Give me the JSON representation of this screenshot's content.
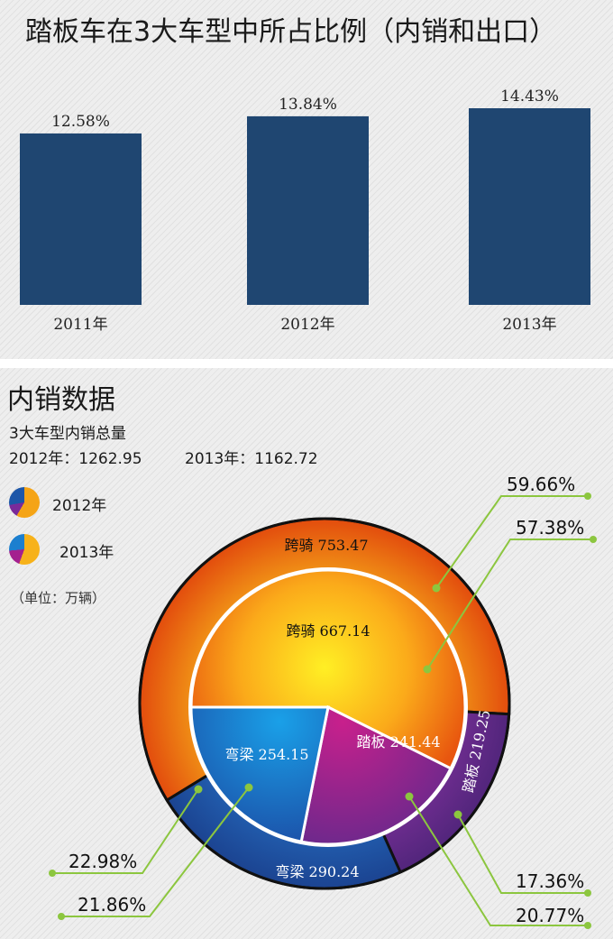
{
  "bar_chart": {
    "title": "踏板车在3大车型中所占比例（内销和出口）",
    "type": "bar",
    "categories": [
      "2011年",
      "2012年",
      "2013年"
    ],
    "values": [
      12.58,
      13.84,
      14.43
    ],
    "value_labels": [
      "12.58%",
      "13.84%",
      "14.43%"
    ],
    "color": "#1f4671"
  },
  "domestic": {
    "title": "内销数据",
    "subtitle": "3大车型内销总量",
    "total_2012": "2012年：1262.95",
    "total_2013": "2013年：1162.72",
    "legend": [
      {
        "label": "2012年"
      },
      {
        "label": "2013年"
      }
    ],
    "unit": "（单位：万辆）"
  },
  "chart_data": [
    {
      "type": "bar",
      "title": "踏板车在3大车型中所占比例（内销和出口）",
      "categories": [
        "2011年",
        "2012年",
        "2013年"
      ],
      "values": [
        12.58,
        13.84,
        14.43
      ],
      "ylabel": "",
      "ylim": [
        0,
        14.43
      ]
    },
    {
      "type": "pie",
      "title": "内销数据",
      "series": [
        {
          "name": "2012年",
          "ring": "outer",
          "total": 1262.95,
          "slices": [
            {
              "label": "跨骑",
              "value": 753.47,
              "value_text": "753.47",
              "pct": "59.66%",
              "color": "#f08a1a"
            },
            {
              "label": "踏板",
              "value": 219.25,
              "value_text": "219.25",
              "pct": "17.36%",
              "color": "#5d2a86"
            },
            {
              "label": "弯梁",
              "value": 290.24,
              "value_text": "290.24",
              "pct": "22.98%",
              "color": "#1d56a8"
            }
          ]
        },
        {
          "name": "2013年",
          "ring": "inner",
          "total": 1162.72,
          "slices": [
            {
              "label": "跨骑",
              "value": 667.14,
              "value_text": "667.14",
              "pct": "57.38%",
              "color": "#f6a014"
            },
            {
              "label": "踏板",
              "value": 241.44,
              "value_text": "241.44",
              "pct": "20.77%",
              "color": "#a4208f"
            },
            {
              "label": "弯梁",
              "value": 254.15,
              "value_text": "254.15",
              "pct": "21.86%",
              "color": "#1c7fcf"
            }
          ]
        }
      ],
      "legend": "left"
    }
  ]
}
